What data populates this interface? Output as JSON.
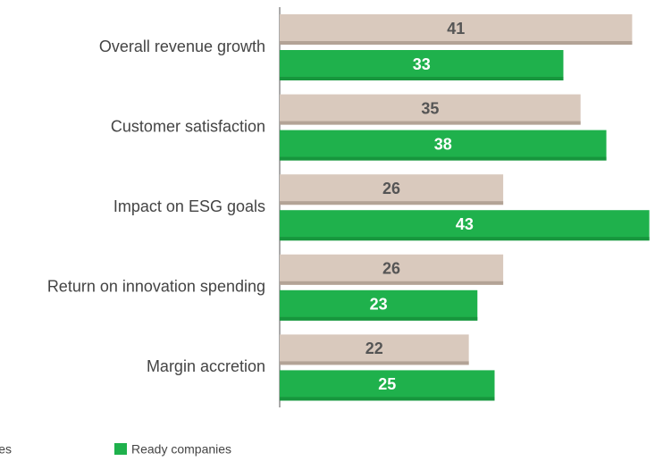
{
  "chart_data": {
    "type": "barh",
    "categories": [
      "Overall revenue growth",
      "Customer satisfaction",
      "Impact on ESG goals",
      "Return on innovation spending",
      "Margin accretion"
    ],
    "series": [
      {
        "name": "es",
        "color": "#d9c9bd",
        "values": [
          41,
          35,
          26,
          26,
          22
        ]
      },
      {
        "name": "Ready companies",
        "color": "#1fb14c",
        "values": [
          33,
          38,
          43,
          23,
          25
        ]
      }
    ]
  }
}
